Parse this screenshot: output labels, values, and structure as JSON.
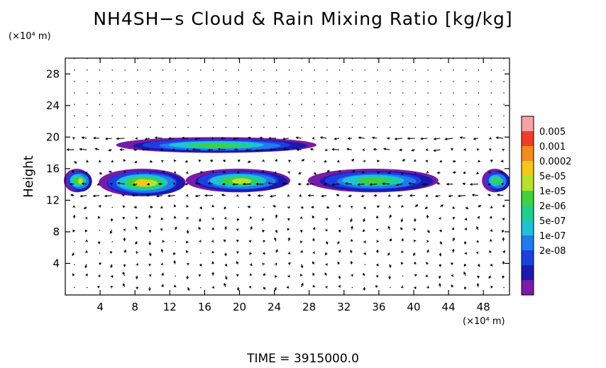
{
  "chart_data": {
    "type": "heatmap",
    "title": "NH4SH−s Cloud & Rain Mixing Ratio [kg/kg]",
    "ylabel": "Height",
    "y_unit_label": "(×10⁴ m)",
    "x_unit_label": "(×10⁴ m)",
    "xlim": [
      0,
      51
    ],
    "ylim": [
      0,
      30
    ],
    "x_ticks": [
      4,
      8,
      12,
      16,
      20,
      24,
      28,
      32,
      36,
      40,
      44,
      48
    ],
    "y_ticks": [
      4,
      8,
      12,
      16,
      20,
      24,
      28
    ],
    "colorbar": {
      "labels": [
        "0.005",
        "0.001",
        "0.0002",
        "5e-05",
        "1e-05",
        "2e-06",
        "5e-07",
        "1e-07",
        "2e-08"
      ],
      "colors": [
        "#f5a3a3",
        "#f23b2a",
        "#f28c1c",
        "#f5c818",
        "#b6e32a",
        "#3fd23f",
        "#1fd08a",
        "#1fc1d8",
        "#1e7cf0",
        "#1d3fe0",
        "#1a1ab0",
        "#7a1aa8"
      ]
    },
    "cloud_regions": [
      {
        "x": [
          0,
          3
        ],
        "y": [
          13,
          16
        ],
        "peak": "5e-05"
      },
      {
        "x": [
          4,
          14
        ],
        "y": [
          12.5,
          16
        ],
        "peak": "0.0002"
      },
      {
        "x": [
          14,
          26
        ],
        "y": [
          13,
          16
        ],
        "peak": "5e-05"
      },
      {
        "x": [
          6,
          29
        ],
        "y": [
          18,
          20
        ],
        "peak": "1e-05"
      },
      {
        "x": [
          28,
          43
        ],
        "y": [
          13,
          16
        ],
        "peak": "1e-05"
      },
      {
        "x": [
          48,
          51
        ],
        "y": [
          13,
          16
        ],
        "peak": "1e-05"
      }
    ],
    "vector_field": "wind arrows over full domain; strong horizontal flow near heights 13 and 19"
  },
  "footer": {
    "time_label": "TIME = 3915000.0"
  }
}
